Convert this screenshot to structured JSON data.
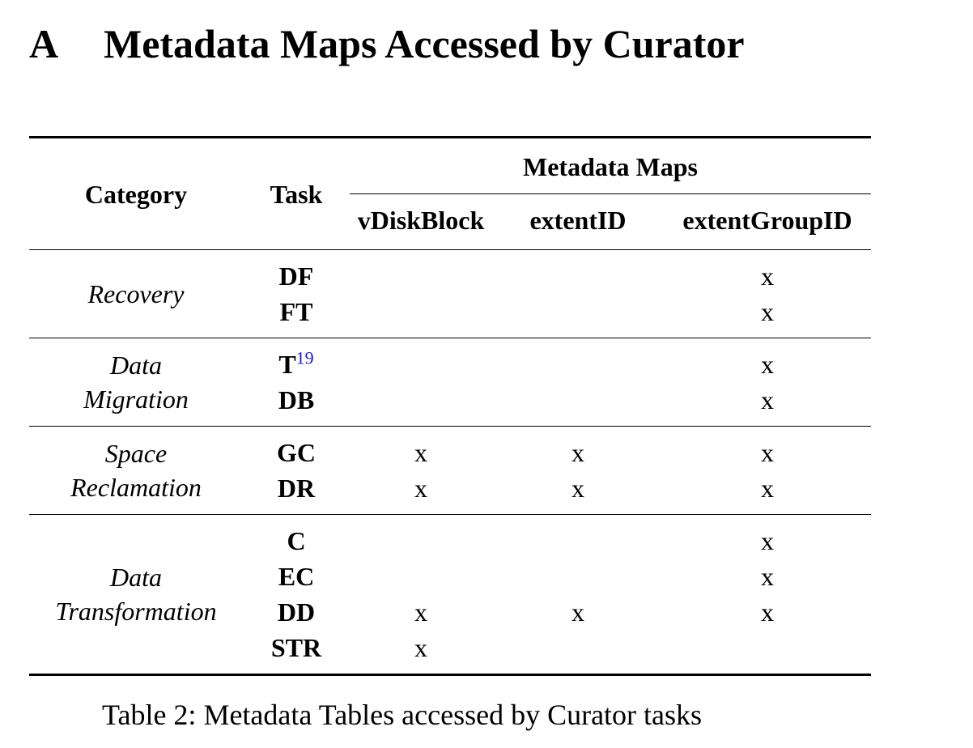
{
  "section": {
    "number": "A",
    "title": "Metadata Maps Accessed by Curator"
  },
  "table": {
    "headers": {
      "category": "Category",
      "task": "Task",
      "group": "Metadata Maps",
      "maps": [
        "vDiskBlock",
        "extentID",
        "extentGroupID"
      ]
    },
    "groups": [
      {
        "category": [
          "Recovery"
        ],
        "tasks": [
          {
            "name": "DF",
            "footnote": "",
            "marks": [
              "",
              "",
              "x"
            ]
          },
          {
            "name": "FT",
            "footnote": "",
            "marks": [
              "",
              "",
              "x"
            ]
          }
        ]
      },
      {
        "category": [
          "Data",
          "Migration"
        ],
        "tasks": [
          {
            "name": "T",
            "footnote": "19",
            "marks": [
              "",
              "",
              "x"
            ]
          },
          {
            "name": "DB",
            "footnote": "",
            "marks": [
              "",
              "",
              "x"
            ]
          }
        ]
      },
      {
        "category": [
          "Space",
          "Reclamation"
        ],
        "tasks": [
          {
            "name": "GC",
            "footnote": "",
            "marks": [
              "x",
              "x",
              "x"
            ]
          },
          {
            "name": "DR",
            "footnote": "",
            "marks": [
              "x",
              "x",
              "x"
            ]
          }
        ]
      },
      {
        "category": [
          "Data",
          "Transformation"
        ],
        "tasks": [
          {
            "name": "C",
            "footnote": "",
            "marks": [
              "",
              "",
              "x"
            ]
          },
          {
            "name": "EC",
            "footnote": "",
            "marks": [
              "",
              "",
              "x"
            ]
          },
          {
            "name": "DD",
            "footnote": "",
            "marks": [
              "x",
              "x",
              "x"
            ]
          },
          {
            "name": "STR",
            "footnote": "",
            "marks": [
              "x",
              "",
              ""
            ]
          }
        ]
      }
    ]
  },
  "caption": "Table 2: Metadata Tables accessed by Curator tasks"
}
